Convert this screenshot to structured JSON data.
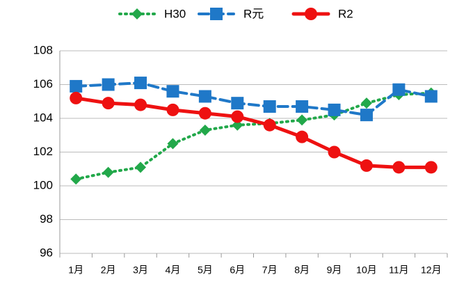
{
  "chart_data": {
    "type": "line",
    "categories": [
      "1月",
      "2月",
      "3月",
      "4月",
      "5月",
      "6月",
      "7月",
      "8月",
      "9月",
      "10月",
      "11月",
      "12月"
    ],
    "series": [
      {
        "name": "H30",
        "color": "#22a84a",
        "marker": "diamond",
        "dash": "dotted",
        "values": [
          100.4,
          100.8,
          101.1,
          102.5,
          103.3,
          103.6,
          103.7,
          103.9,
          104.2,
          104.9,
          105.4,
          105.5
        ]
      },
      {
        "name": "R元",
        "color": "#1f78c8",
        "marker": "square",
        "dash": "dashed",
        "values": [
          105.9,
          106.0,
          106.1,
          105.6,
          105.3,
          104.9,
          104.7,
          104.7,
          104.5,
          104.2,
          105.7,
          105.3
        ]
      },
      {
        "name": "R2",
        "color": "#ee1111",
        "marker": "circle",
        "dash": "solid",
        "values": [
          105.2,
          104.9,
          104.8,
          104.5,
          104.3,
          104.1,
          103.6,
          102.9,
          102.0,
          101.2,
          101.1,
          101.1
        ]
      }
    ],
    "ylim": [
      96,
      108
    ],
    "yticks": [
      96,
      98,
      100,
      102,
      104,
      106,
      108
    ],
    "grid": true,
    "legend": "top"
  }
}
